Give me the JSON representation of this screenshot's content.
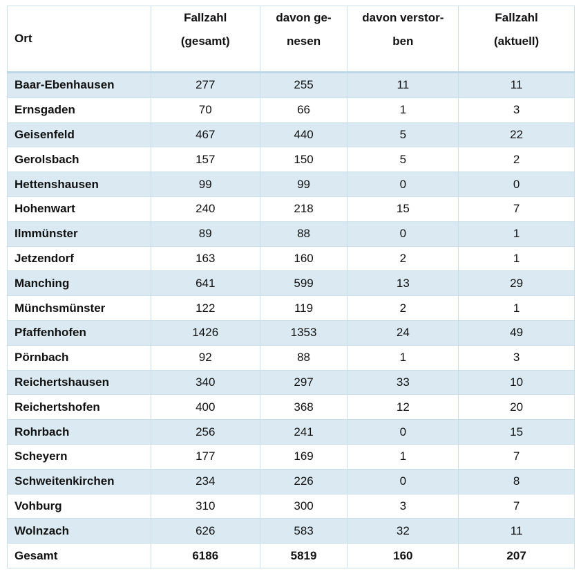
{
  "table": {
    "header": [
      [
        "Ort"
      ],
      [
        "Fallzahl",
        "(gesamt)"
      ],
      [
        "davon ge-",
        "nesen"
      ],
      [
        "davon verstor-",
        "ben"
      ],
      [
        "Fallzahl",
        "(aktuell)"
      ]
    ],
    "rows": [
      [
        "Baar-Ebenhausen",
        277,
        255,
        11,
        11
      ],
      [
        "Ernsgaden",
        70,
        66,
        1,
        3
      ],
      [
        "Geisenfeld",
        467,
        440,
        5,
        22
      ],
      [
        "Gerolsbach",
        157,
        150,
        5,
        2
      ],
      [
        "Hettenshausen",
        99,
        99,
        0,
        0
      ],
      [
        "Hohenwart",
        240,
        218,
        15,
        7
      ],
      [
        "Ilmmünster",
        89,
        88,
        0,
        1
      ],
      [
        "Jetzendorf",
        163,
        160,
        2,
        1
      ],
      [
        "Manching",
        641,
        599,
        13,
        29
      ],
      [
        "Münchsmünster",
        122,
        119,
        2,
        1
      ],
      [
        "Pfaffenhofen",
        1426,
        1353,
        24,
        49
      ],
      [
        "Pörnbach",
        92,
        88,
        1,
        3
      ],
      [
        "Reichertshausen",
        340,
        297,
        33,
        10
      ],
      [
        "Reichertshofen",
        400,
        368,
        12,
        20
      ],
      [
        "Rohrbach",
        256,
        241,
        0,
        15
      ],
      [
        "Scheyern",
        177,
        169,
        1,
        7
      ],
      [
        "Schweitenkirchen",
        234,
        226,
        0,
        8
      ],
      [
        "Vohburg",
        310,
        300,
        3,
        7
      ],
      [
        "Wolnzach",
        626,
        583,
        32,
        11
      ]
    ],
    "total": [
      "Gesamt",
      6186,
      5819,
      160,
      207
    ]
  }
}
